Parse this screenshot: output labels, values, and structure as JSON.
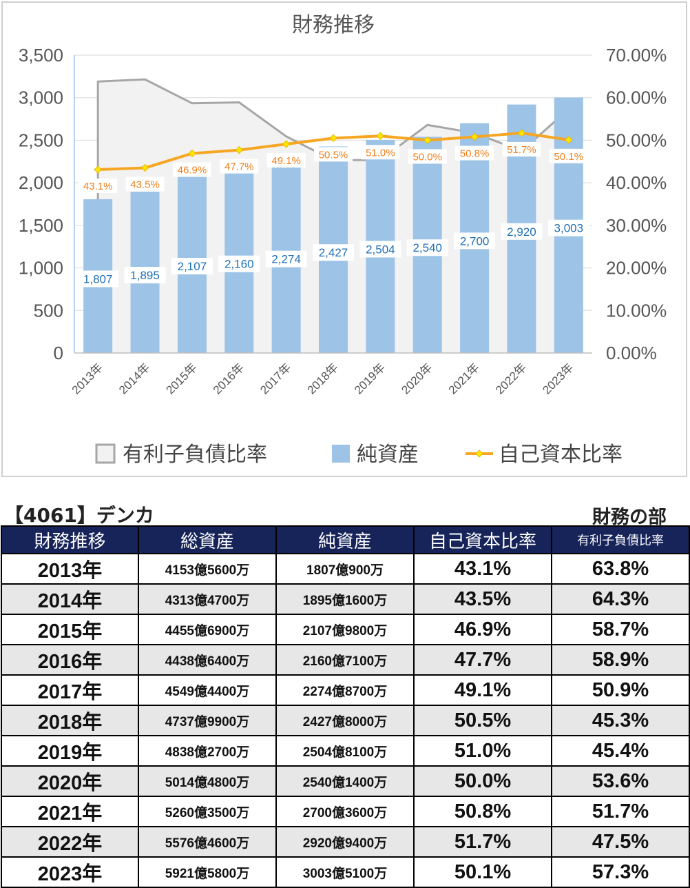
{
  "chart_data": {
    "type": "bar",
    "title": "財務推移",
    "categories": [
      "2013年",
      "2014年",
      "2015年",
      "2016年",
      "2017年",
      "2018年",
      "2019年",
      "2020年",
      "2021年",
      "2022年",
      "2023年"
    ],
    "y_left": {
      "range": [
        0,
        3500
      ],
      "ticks": [
        "0",
        "500",
        "1,000",
        "1,500",
        "2,000",
        "2,500",
        "3,000",
        "3,500"
      ]
    },
    "y_right": {
      "range": [
        0,
        70
      ],
      "ticks": [
        "0.00%",
        "10.00%",
        "20.00%",
        "30.00%",
        "40.00%",
        "50.00%",
        "60.00%",
        "70.00%"
      ]
    },
    "grid": true,
    "legend_position": "bottom",
    "series": [
      {
        "name": "有利子負債比率",
        "type": "area",
        "axis": "right",
        "color": "#a6a6a6",
        "values": [
          63.8,
          64.3,
          58.7,
          58.9,
          50.9,
          45.3,
          45.4,
          53.6,
          51.7,
          47.5,
          57.3
        ]
      },
      {
        "name": "純資産",
        "type": "bar",
        "axis": "left",
        "color": "#9dc3e6",
        "values": [
          1807,
          1895,
          2107,
          2160,
          2274,
          2427,
          2504,
          2540,
          2700,
          2920,
          3003
        ],
        "labels": [
          "1,807",
          "1,895",
          "2,107",
          "2,160",
          "2,274",
          "2,427",
          "2,504",
          "2,540",
          "2,700",
          "2,920",
          "3,003"
        ]
      },
      {
        "name": "自己資本比率",
        "type": "line",
        "axis": "right",
        "color": "#f6a623",
        "values": [
          43.1,
          43.5,
          46.9,
          47.7,
          49.1,
          50.5,
          51.0,
          50.0,
          50.8,
          51.7,
          50.1
        ],
        "labels": [
          "43.1%",
          "43.5%",
          "46.9%",
          "47.7%",
          "49.1%",
          "50.5%",
          "51.0%",
          "50.0%",
          "50.8%",
          "51.7%",
          "50.1%"
        ]
      }
    ]
  },
  "company_label": "【4061】デンカ",
  "section_label": "財務の部",
  "table": {
    "headers": [
      "財務推移",
      "総資産",
      "純資産",
      "自己資本比率",
      "有利子負債比率"
    ],
    "rows": [
      [
        "2013年",
        "4153億5600万",
        "1807億900万",
        "43.1%",
        "63.8%"
      ],
      [
        "2014年",
        "4313億4700万",
        "1895億1600万",
        "43.5%",
        "64.3%"
      ],
      [
        "2015年",
        "4455億6900万",
        "2107億9800万",
        "46.9%",
        "58.7%"
      ],
      [
        "2016年",
        "4438億6400万",
        "2160億7100万",
        "47.7%",
        "58.9%"
      ],
      [
        "2017年",
        "4549億4400万",
        "2274億8700万",
        "49.1%",
        "50.9%"
      ],
      [
        "2018年",
        "4737億9900万",
        "2427億8000万",
        "50.5%",
        "45.3%"
      ],
      [
        "2019年",
        "4838億2700万",
        "2504億8100万",
        "51.0%",
        "45.4%"
      ],
      [
        "2020年",
        "5014億4800万",
        "2540億1400万",
        "50.0%",
        "53.6%"
      ],
      [
        "2021年",
        "5260億3500万",
        "2700億3600万",
        "50.8%",
        "51.7%"
      ],
      [
        "2022年",
        "5576億4600万",
        "2920億9400万",
        "51.7%",
        "47.5%"
      ],
      [
        "2023年",
        "5921億5800万",
        "3003億5100万",
        "50.1%",
        "57.3%"
      ]
    ]
  }
}
